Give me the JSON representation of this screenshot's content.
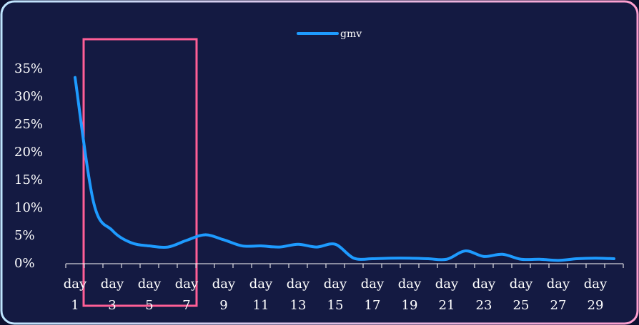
{
  "chart_data": {
    "type": "line",
    "categories": [
      "day 1",
      null,
      "day 3",
      null,
      "day 5",
      null,
      "day 7",
      null,
      "day 9",
      null,
      "day 11",
      null,
      "day 13",
      null,
      "day 15",
      null,
      "day 17",
      null,
      "day 19",
      null,
      "day 21",
      null,
      "day 23",
      null,
      "day 25",
      null,
      "day 27",
      null,
      "day 29",
      null
    ],
    "series": [
      {
        "name": "gmv",
        "color": "#1e9bff",
        "values": [
          33.5,
          11,
          6,
          3.8,
          3.2,
          3,
          4.2,
          5.2,
          4.3,
          3.2,
          3.2,
          3,
          3.5,
          3,
          3.5,
          1,
          0.9,
          1,
          1,
          0.9,
          0.8,
          2.3,
          1.3,
          1.7,
          0.8,
          0.8,
          0.6,
          0.9,
          1,
          0.9
        ]
      }
    ],
    "ylim": [
      0,
      35
    ],
    "yticks": [
      {
        "value": 0,
        "label": "0%"
      },
      {
        "value": 5,
        "label": "5%"
      },
      {
        "value": 10,
        "label": "10%"
      },
      {
        "value": 15,
        "label": "15%"
      },
      {
        "value": 20,
        "label": "20%"
      },
      {
        "value": 25,
        "label": "25%"
      },
      {
        "value": 30,
        "label": "30%"
      },
      {
        "value": 35,
        "label": "35%"
      }
    ],
    "legend": "top"
  }
}
